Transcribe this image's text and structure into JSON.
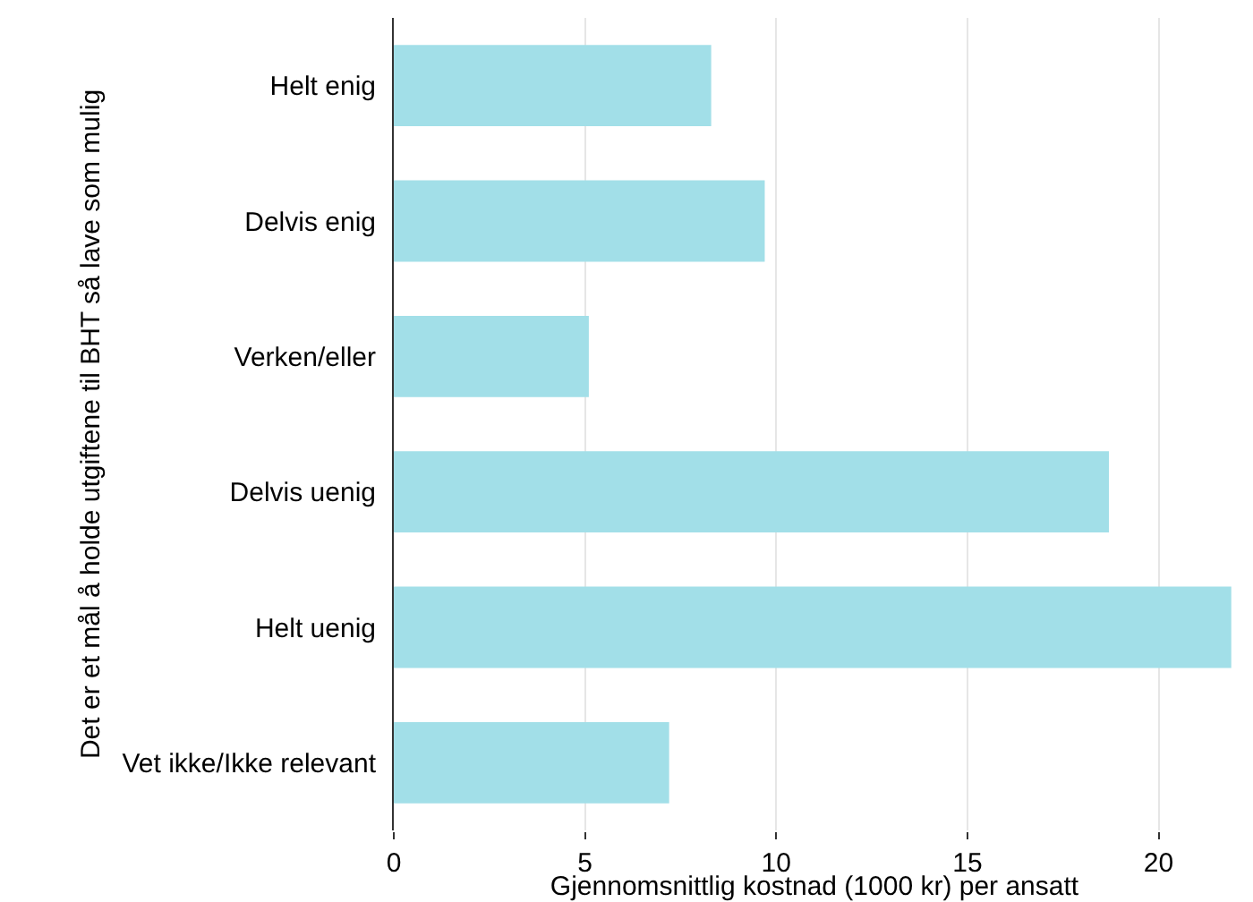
{
  "chart_data": {
    "type": "bar",
    "orientation": "horizontal",
    "xlabel": "Gjennomsnittlig kostnad (1000 kr) per ansatt",
    "ylabel": "Det er et mål å holde utgiftene til BHT så lave som mulig",
    "categories": [
      "Helt enig",
      "Delvis enig",
      "Verken/eller",
      "Delvis uenig",
      "Helt uenig",
      "Vet ikke/Ikke relevant"
    ],
    "values": [
      8.3,
      9.7,
      5.1,
      18.7,
      21.9,
      7.2
    ],
    "color": "#a2dfe8",
    "xlim": [
      0,
      22
    ],
    "xticks": [
      0,
      5,
      10,
      15,
      20
    ],
    "grid": "x"
  }
}
